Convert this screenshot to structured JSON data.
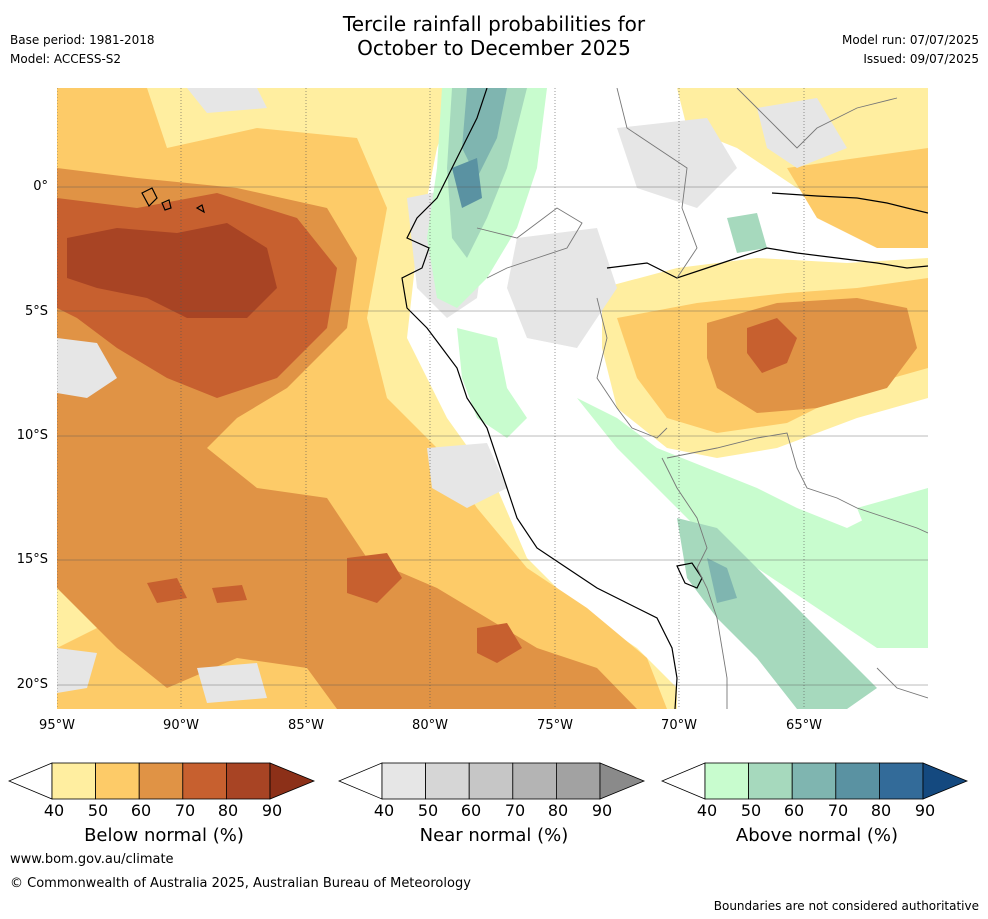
{
  "title": {
    "line1": "Tercile rainfall probabilities for",
    "line2": "October to December 2025"
  },
  "meta_left": {
    "base_period": "Base period: 1981-2018",
    "model": "Model: ACCESS-S2"
  },
  "meta_right": {
    "model_run": "Model run: 07/07/2025",
    "issued": "Issued: 09/07/2025"
  },
  "axes": {
    "lat_labels": [
      "0°",
      "5°S",
      "10°S",
      "15°S",
      "20°S"
    ],
    "lon_labels": [
      "95°W",
      "90°W",
      "85°W",
      "80°W",
      "75°W",
      "70°W",
      "65°W"
    ]
  },
  "legends": {
    "ticks": [
      "40",
      "50",
      "60",
      "70",
      "80",
      "90"
    ],
    "below": {
      "label": "Below normal (%)",
      "colors": [
        "#ffeea0",
        "#fdcb68",
        "#e09345",
        "#c7602f",
        "#a84424",
        "#8c3018"
      ]
    },
    "near": {
      "label": "Near normal (%)",
      "colors": [
        "#e6e6e6",
        "#d6d6d6",
        "#c6c6c6",
        "#b4b4b4",
        "#a2a2a2",
        "#8a8a8a"
      ]
    },
    "above": {
      "label": "Above normal (%)",
      "colors": [
        "#c8fcce",
        "#a6d9bd",
        "#7fb5b0",
        "#5a92a2",
        "#336b99",
        "#14497f"
      ]
    }
  },
  "footer": {
    "website": "www.bom.gov.au/climate",
    "copyright": "© Commonwealth of Australia 2025, Australian Bureau of Meteorology",
    "disclaimer": "Boundaries are not considered authoritative"
  }
}
